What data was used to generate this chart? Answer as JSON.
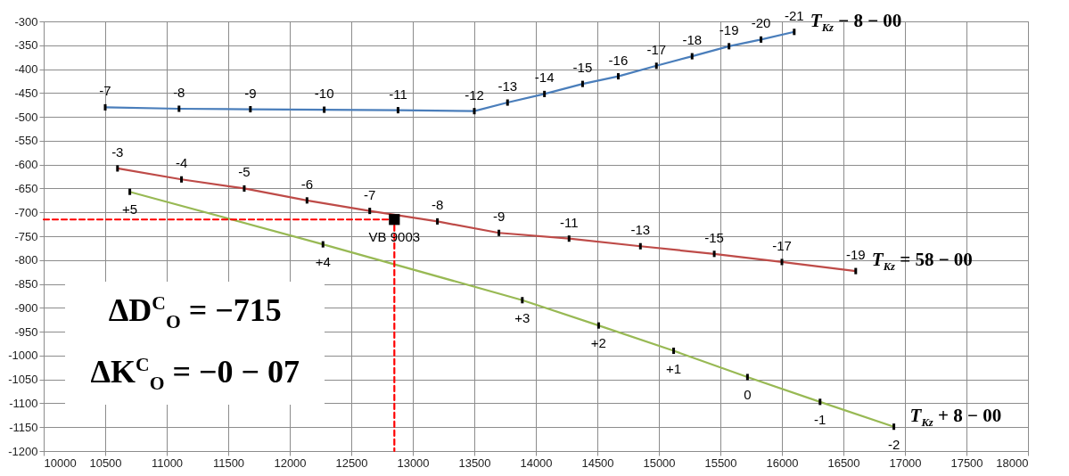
{
  "chart_data": {
    "type": "line",
    "xlim": [
      10000,
      18000
    ],
    "ylim": [
      -1200,
      -300
    ],
    "xticks": [
      10000,
      10500,
      11000,
      11500,
      12000,
      12500,
      13000,
      13500,
      14000,
      14500,
      15000,
      15500,
      16000,
      16500,
      17000,
      17500,
      18000
    ],
    "yticks": [
      -300,
      -350,
      -400,
      -450,
      -500,
      -550,
      -600,
      -650,
      -700,
      -750,
      -800,
      -850,
      -900,
      -950,
      -1000,
      -1050,
      -1100,
      -1150,
      -1200
    ],
    "grid": true,
    "series": [
      {
        "name": "T$_{Kz}$ − 8 − 00",
        "color": "#4a7ebb",
        "x": [
          10500,
          11100,
          11680,
          12280,
          12880,
          13500,
          13770,
          14070,
          14380,
          14670,
          14980,
          15270,
          15570,
          15830,
          16100
        ],
        "values": [
          -480,
          -483,
          -484,
          -485,
          -486,
          -488,
          -470,
          -452,
          -431,
          -415,
          -393,
          -373,
          -352,
          -338,
          -322
        ]
      },
      {
        "name": "T$_{Kz}$ = 58 − 00",
        "color": "#be4b48",
        "x": [
          10600,
          11120,
          11630,
          12140,
          12650,
          13200,
          13700,
          14270,
          14850,
          15450,
          16000,
          16600
        ],
        "values": [
          -608,
          -631,
          -650,
          -675,
          -697,
          -719,
          -743,
          -755,
          -771,
          -787,
          -804,
          -823
        ]
      },
      {
        "name": "T$_{Kz}$ + 8 − 00",
        "color": "#98b954",
        "x": [
          10700,
          12270,
          13890,
          14510,
          15120,
          15720,
          16310,
          16910
        ],
        "values": [
          -657,
          -767,
          -884,
          -937,
          -990,
          -1045,
          -1097,
          -1149
        ]
      },
      {
        "type": "line",
        "color": "#ff0000",
        "line_style": "dashed",
        "x": [
          10000,
          12850,
          12850
        ],
        "values": [
          -715,
          -715,
          -1200
        ]
      },
      {
        "type": "scatter",
        "marker": "square",
        "color": "#000000",
        "x": [
          12850
        ],
        "values": [
          -715
        ]
      }
    ],
    "annotations": [
      "ΔD$^{C}$$_{O}$ = −715",
      "ΔK$^{C}$$_{O}$ = −0 − 07",
      {
        "text": "-7",
        "x": 10500,
        "y": -480
      },
      {
        "text": "-8",
        "x": 11100,
        "y": -483
      },
      {
        "text": "-9",
        "x": 11680,
        "y": -484
      },
      {
        "text": "-10",
        "x": 12280,
        "y": -485
      },
      {
        "text": "-11",
        "x": 12880,
        "y": -486
      },
      {
        "text": "-12",
        "x": 13500,
        "y": -488
      },
      {
        "text": "-13",
        "x": 13770,
        "y": -470
      },
      {
        "text": "-14",
        "x": 14070,
        "y": -452
      },
      {
        "text": "-15",
        "x": 14380,
        "y": -431
      },
      {
        "text": "-16",
        "x": 14670,
        "y": -415
      },
      {
        "text": "-17",
        "x": 14980,
        "y": -393
      },
      {
        "text": "-18",
        "x": 15270,
        "y": -373
      },
      {
        "text": "-19",
        "x": 15570,
        "y": -352
      },
      {
        "text": "-20",
        "x": 15830,
        "y": -338
      },
      {
        "text": "-21",
        "x": 16100,
        "y": -322
      },
      {
        "text": "-3",
        "x": 10600,
        "y": -608
      },
      {
        "text": "-4",
        "x": 11120,
        "y": -631
      },
      {
        "text": "-5",
        "x": 11630,
        "y": -650
      },
      {
        "text": "-6",
        "x": 12140,
        "y": -675
      },
      {
        "text": "-7",
        "x": 12650,
        "y": -697
      },
      {
        "text": "-8",
        "x": 13200,
        "y": -719
      },
      {
        "text": "-9",
        "x": 13700,
        "y": -743
      },
      {
        "text": "-11",
        "x": 14270,
        "y": -755
      },
      {
        "text": "-13",
        "x": 14850,
        "y": -771
      },
      {
        "text": "-15",
        "x": 15450,
        "y": -787
      },
      {
        "text": "-17",
        "x": 16000,
        "y": -804
      },
      {
        "text": "-19",
        "x": 16600,
        "y": -823
      },
      {
        "text": "+5",
        "x": 10700,
        "y": -657
      },
      {
        "text": "+4",
        "x": 12270,
        "y": -767
      },
      {
        "text": "+3",
        "x": 13890,
        "y": -884
      },
      {
        "text": "+2",
        "x": 14510,
        "y": -937
      },
      {
        "text": "+1",
        "x": 15120,
        "y": -990
      },
      {
        "text": "0",
        "x": 15720,
        "y": -1045
      },
      {
        "text": "-1",
        "x": 16310,
        "y": -1097
      },
      {
        "text": "-2",
        "x": 16910,
        "y": -1149
      },
      {
        "text": "VB 9003",
        "x": 12850,
        "y": -715
      }
    ]
  }
}
